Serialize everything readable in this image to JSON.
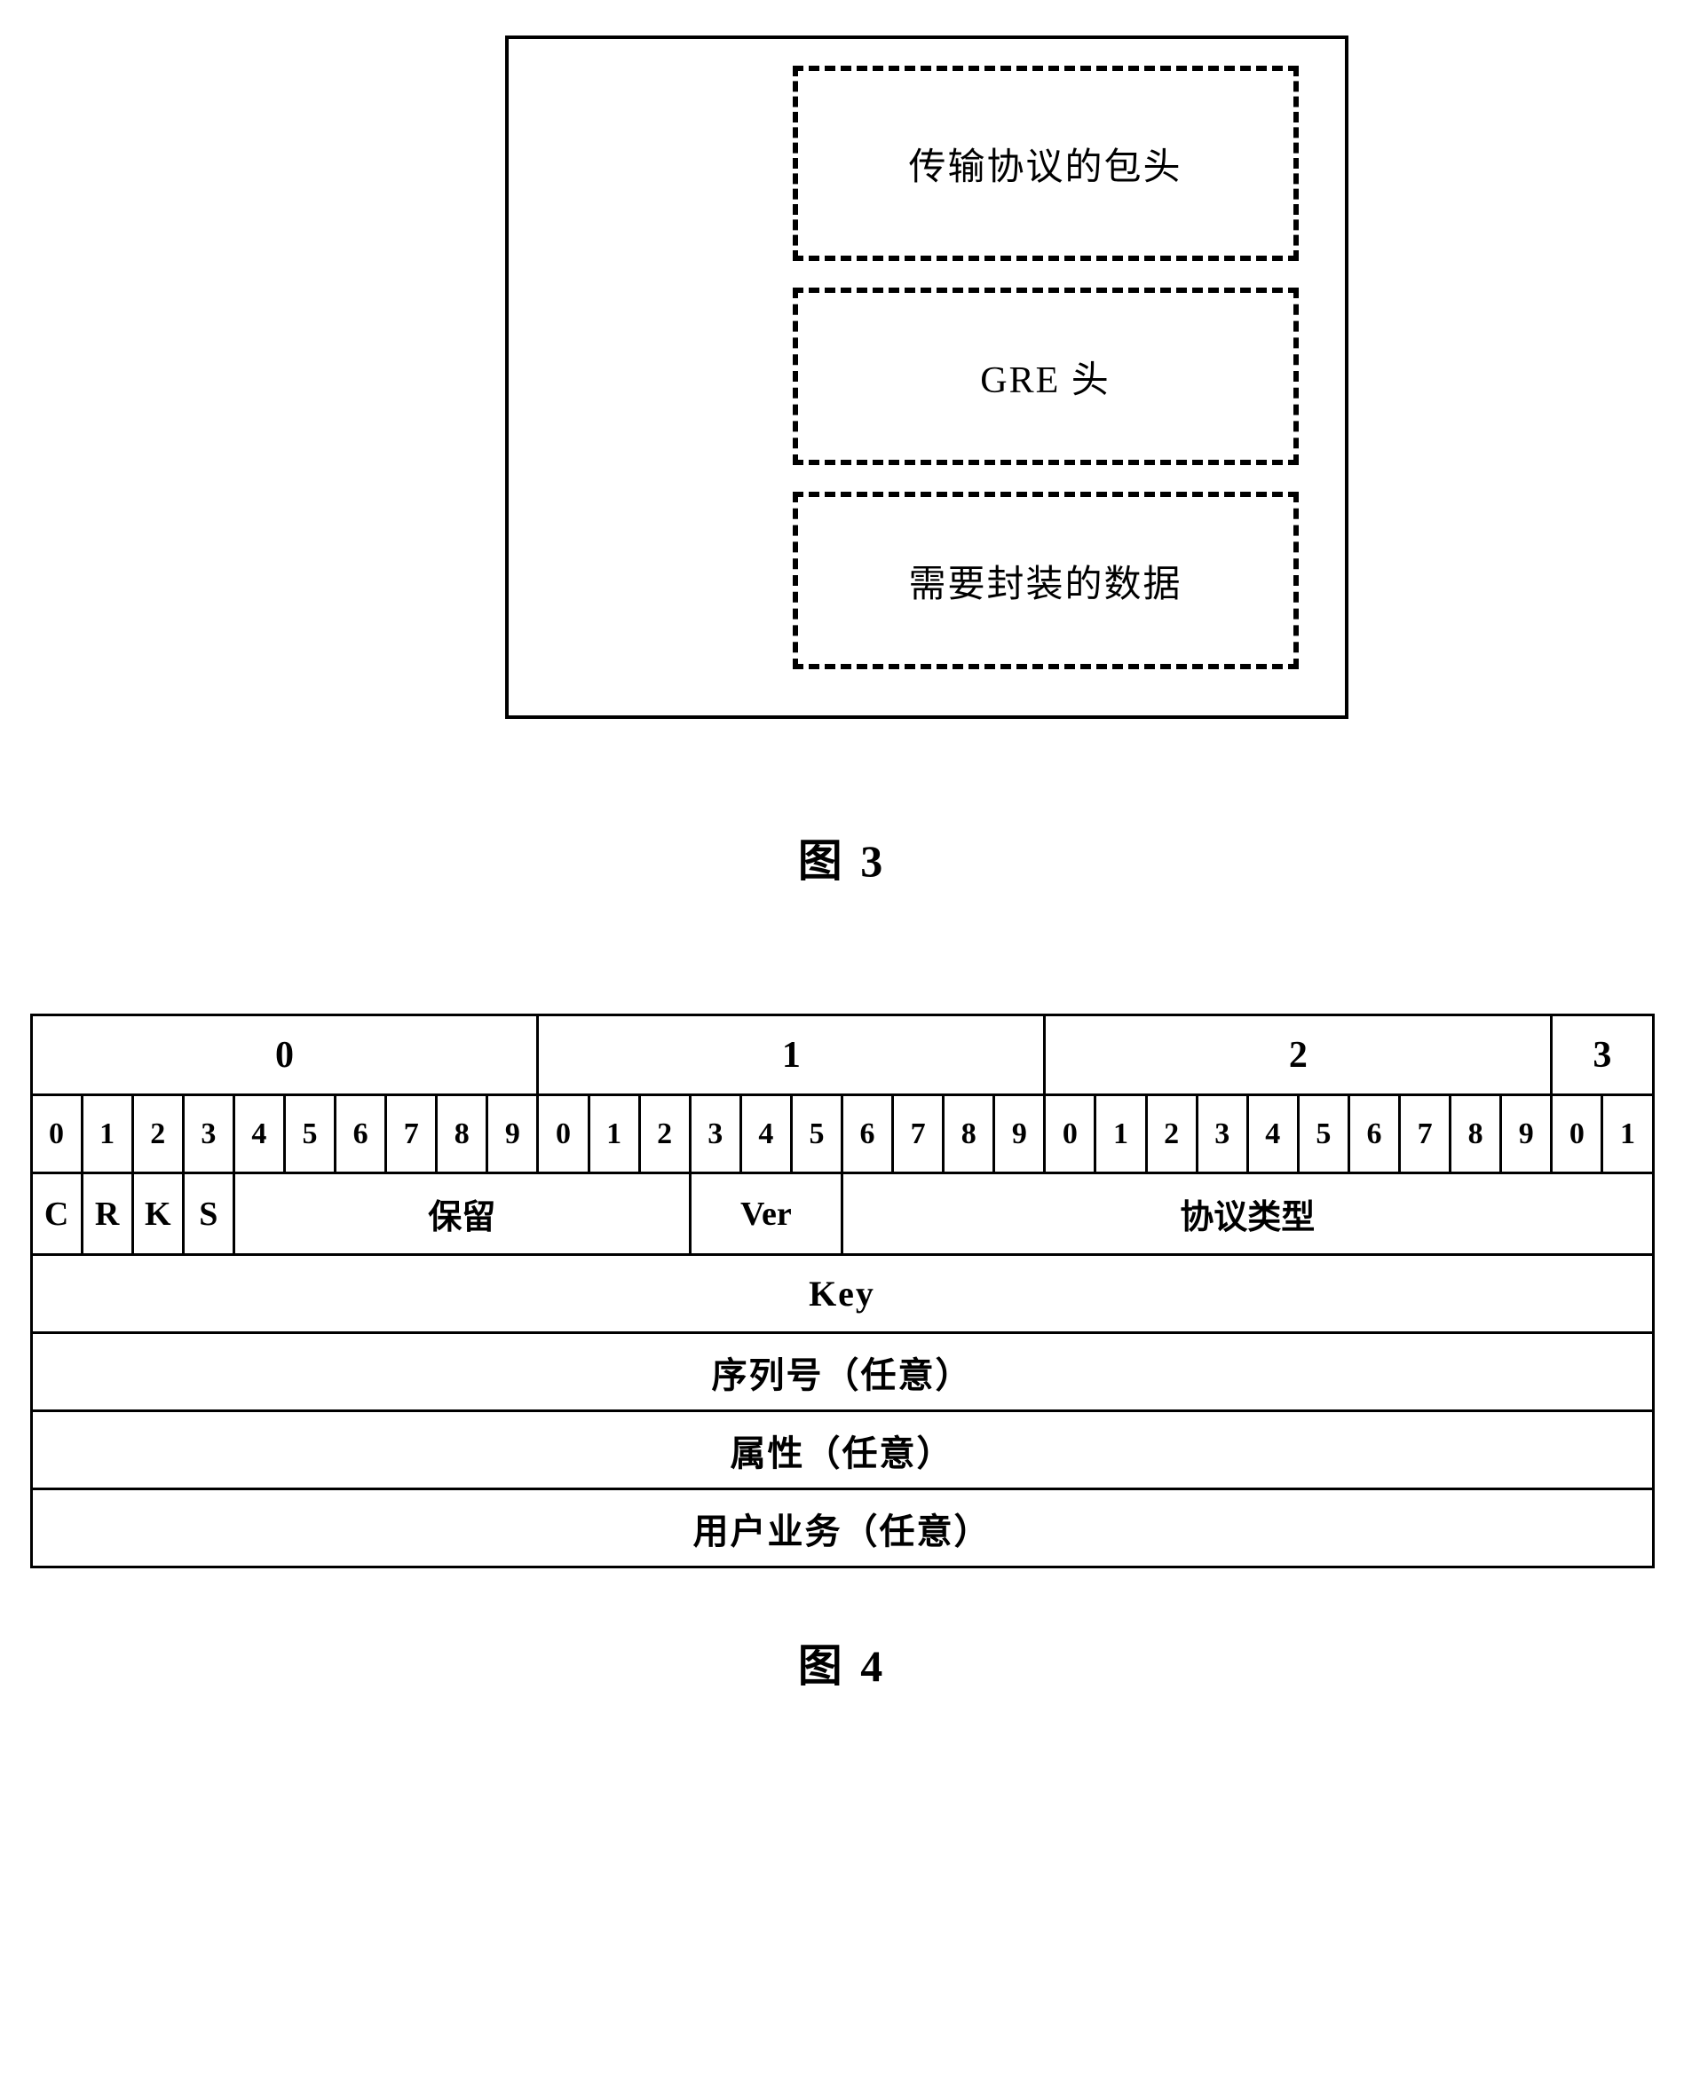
{
  "fig3": {
    "layers": [
      "传输协议的包头",
      "GRE 头",
      "需要封装的数据"
    ],
    "caption": "图 3",
    "border_color": "#000000",
    "background_color": "#ffffff"
  },
  "fig4": {
    "caption": "图 4",
    "octet_headers": [
      "0",
      "1",
      "2",
      "3"
    ],
    "octet_spans": [
      10,
      10,
      10,
      2
    ],
    "bit_numbers": [
      "0",
      "1",
      "2",
      "3",
      "4",
      "5",
      "6",
      "7",
      "8",
      "9",
      "0",
      "1",
      "2",
      "3",
      "4",
      "5",
      "6",
      "7",
      "8",
      "9",
      "0",
      "1",
      "2",
      "3",
      "4",
      "5",
      "6",
      "7",
      "8",
      "9",
      "0",
      "1"
    ],
    "fields_row": [
      {
        "label": "C",
        "span": 1
      },
      {
        "label": "R",
        "span": 1
      },
      {
        "label": "K",
        "span": 1
      },
      {
        "label": "S",
        "span": 1
      },
      {
        "label": "保留",
        "span": 9
      },
      {
        "label": "Ver",
        "span": 3
      },
      {
        "label": "协议类型",
        "span": 16
      }
    ],
    "full_rows": [
      "Key",
      "序列号（任意）",
      "属性（任意）",
      "用户业务（任意）"
    ],
    "border_color": "#000000",
    "background_color": "#ffffff",
    "font_color": "#000000"
  }
}
